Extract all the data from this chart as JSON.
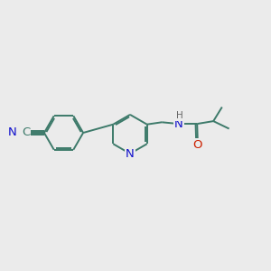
{
  "bg_color": "#ebebeb",
  "bond_color": "#3d7a6a",
  "atom_colors": {
    "N": "#1010cc",
    "O": "#cc2000",
    "H": "#666666"
  },
  "lw": 1.4,
  "dbo": 0.055,
  "fs": 9.5,
  "fs_s": 7.5,
  "xlim": [
    0,
    10
  ],
  "ylim": [
    0,
    10
  ]
}
